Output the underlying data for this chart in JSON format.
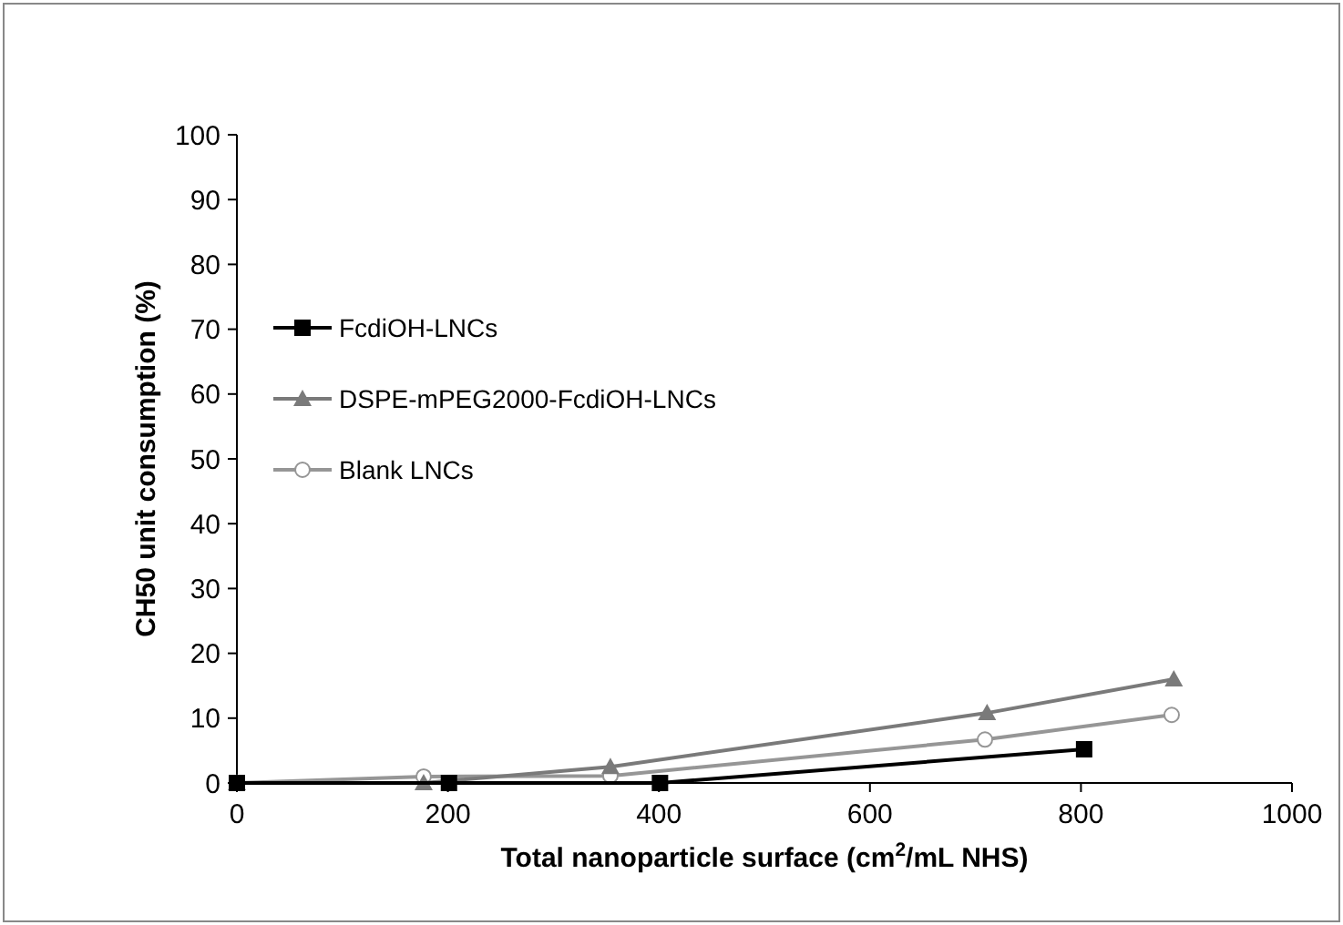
{
  "chart_data": {
    "type": "line",
    "xlabel": "Total nanoparticle surface (cm$^{2}$/mL NHS)",
    "ylabel": "CH50 unit consumption (%)",
    "xlim": [
      0,
      1000
    ],
    "xticks": [
      0,
      200,
      400,
      600,
      800,
      1000
    ],
    "ylim": [
      0,
      100
    ],
    "yticks": [
      0,
      10,
      20,
      30,
      40,
      50,
      60,
      70,
      80,
      90,
      100
    ],
    "grid": false,
    "legend": "center left",
    "series": [
      {
        "name": "FcdiOH-LNCs",
        "color": "#000000",
        "marker": "square",
        "x": [
          0,
          201,
          401,
          803
        ],
        "values": [
          0,
          0,
          0,
          5.2
        ]
      },
      {
        "name": "DSPE-mPEG2000-FcdiOH-LNCs",
        "color": "#7a7a7a",
        "marker": "triangle",
        "x": [
          0,
          177,
          354,
          711,
          888
        ],
        "values": [
          0,
          0,
          2.5,
          10.8,
          16.0
        ]
      },
      {
        "name": "Blank LNCs",
        "color": "#969696",
        "marker": "circle",
        "x": [
          0,
          177,
          354,
          709,
          886
        ],
        "values": [
          0,
          1.0,
          1.1,
          6.7,
          10.5
        ]
      }
    ]
  }
}
